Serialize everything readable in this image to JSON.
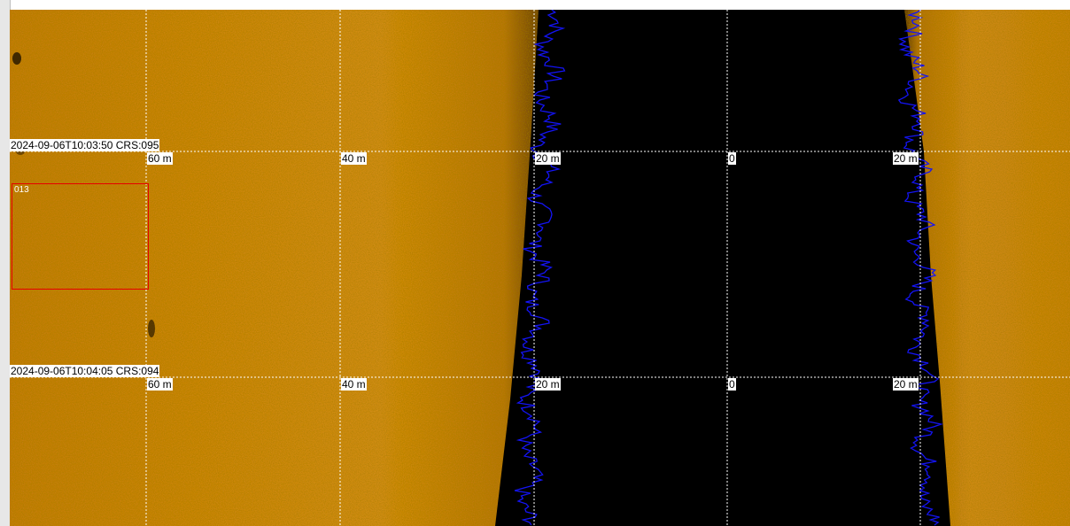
{
  "colors": {
    "seabed": "#c8850f",
    "water_column": "#000000",
    "bottom_trace": "#1010f0",
    "target_box": "#e60000",
    "grid": "#ffffff"
  },
  "pings": [
    {
      "timestamp_label": "2024-09-06T10:03:50 CRS:095",
      "range_labels": [
        "60 m",
        "40 m",
        "20 m",
        "0",
        "20 m"
      ]
    },
    {
      "timestamp_label": "2024-09-06T10:04:05 CRS:094",
      "range_labels": [
        "60 m",
        "40 m",
        "20 m",
        "0",
        "20 m"
      ]
    }
  ],
  "target": {
    "label": "013"
  }
}
